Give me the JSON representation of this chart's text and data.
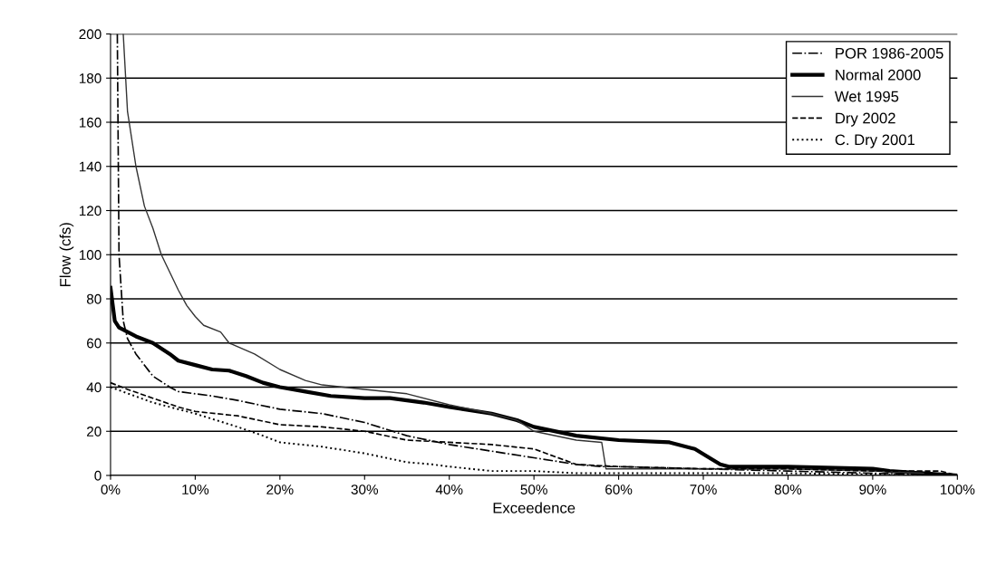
{
  "chart_data": {
    "type": "line",
    "xlabel": "Exceedence",
    "ylabel": "Flow (cfs)",
    "xlim": [
      0,
      100
    ],
    "xticks": [
      {
        "value": 0,
        "label": "0%"
      },
      {
        "value": 10,
        "label": "10%"
      },
      {
        "value": 20,
        "label": "20%"
      },
      {
        "value": 30,
        "label": "30%"
      },
      {
        "value": 40,
        "label": "40%"
      },
      {
        "value": 50,
        "label": "50%"
      },
      {
        "value": 60,
        "label": "60%"
      },
      {
        "value": 70,
        "label": "70%"
      },
      {
        "value": 80,
        "label": "80%"
      },
      {
        "value": 90,
        "label": "90%"
      },
      {
        "value": 100,
        "label": "100%"
      }
    ],
    "ylim": [
      0,
      200
    ],
    "yticks": [
      0,
      20,
      40,
      60,
      80,
      100,
      120,
      140,
      160,
      180,
      200
    ],
    "grid": "y",
    "legend": "top right",
    "marker": "none",
    "series": [
      {
        "name": "POR 1986-2005",
        "color": "#000000",
        "line_style": "dashdot",
        "x": [
          0.8,
          1,
          1.5,
          2,
          3,
          5,
          7,
          8,
          12,
          15,
          20,
          25,
          30,
          35,
          40,
          45,
          50,
          55,
          58,
          60,
          70,
          80,
          90,
          96
        ],
        "values": [
          200,
          100,
          70,
          62,
          55,
          45,
          40,
          38,
          36,
          34,
          30,
          28,
          24,
          18,
          14,
          11,
          8,
          5,
          4,
          4,
          3,
          2,
          1,
          0.5
        ]
      },
      {
        "name": "Normal 2000",
        "color": "#000000",
        "line_style": "solid",
        "x": [
          0,
          0.5,
          1,
          3,
          5,
          7,
          8,
          10,
          12,
          14,
          16,
          18,
          20,
          23,
          26,
          30,
          33,
          37,
          40,
          45,
          48,
          50,
          55,
          60,
          66,
          69,
          72,
          73,
          80,
          90,
          92,
          100
        ],
        "values": [
          85,
          70,
          67,
          63,
          60,
          55,
          52,
          50,
          48,
          47.5,
          45,
          42,
          40,
          38,
          36,
          35,
          35,
          33,
          31,
          28,
          25,
          22,
          18,
          16,
          15,
          12,
          5,
          4,
          4,
          3,
          2,
          0
        ]
      },
      {
        "name": "Wet 1995",
        "color": "#333333",
        "line_style": "solid",
        "x": [
          1.5,
          2,
          3,
          4,
          5,
          6,
          8,
          9,
          10,
          11,
          13,
          14,
          17,
          20,
          23,
          25,
          30,
          35,
          40,
          45,
          48,
          50,
          55,
          58,
          58.5,
          60,
          70,
          80,
          90,
          96
        ],
        "values": [
          200,
          165,
          140,
          122,
          112,
          100,
          84,
          77,
          72,
          68,
          65,
          60,
          55,
          48,
          43,
          41,
          39,
          37,
          32,
          28,
          25,
          20,
          16,
          15,
          3,
          3,
          3,
          3,
          2,
          1
        ]
      },
      {
        "name": "Dry 2002",
        "color": "#000000",
        "line_style": "dashed",
        "x": [
          0,
          2,
          5,
          8,
          10,
          15,
          20,
          25,
          30,
          35,
          40,
          45,
          50,
          55,
          60,
          70,
          80,
          90,
          98,
          100
        ],
        "values": [
          42,
          39,
          35,
          31,
          29,
          27,
          23,
          22,
          20,
          16,
          15,
          14,
          12,
          5,
          4,
          3,
          3,
          2,
          2,
          0
        ]
      },
      {
        "name": "C. Dry 2001",
        "color": "#000000",
        "line_style": "dotted",
        "x": [
          0,
          5,
          10,
          15,
          18,
          20,
          25,
          30,
          35,
          38,
          40,
          45,
          50,
          55,
          60,
          70,
          80,
          90,
          96
        ],
        "values": [
          40,
          33,
          28,
          22,
          18,
          15,
          13,
          10,
          6,
          5,
          4,
          2,
          2,
          1,
          1,
          1,
          1,
          0.5,
          0
        ]
      }
    ]
  }
}
